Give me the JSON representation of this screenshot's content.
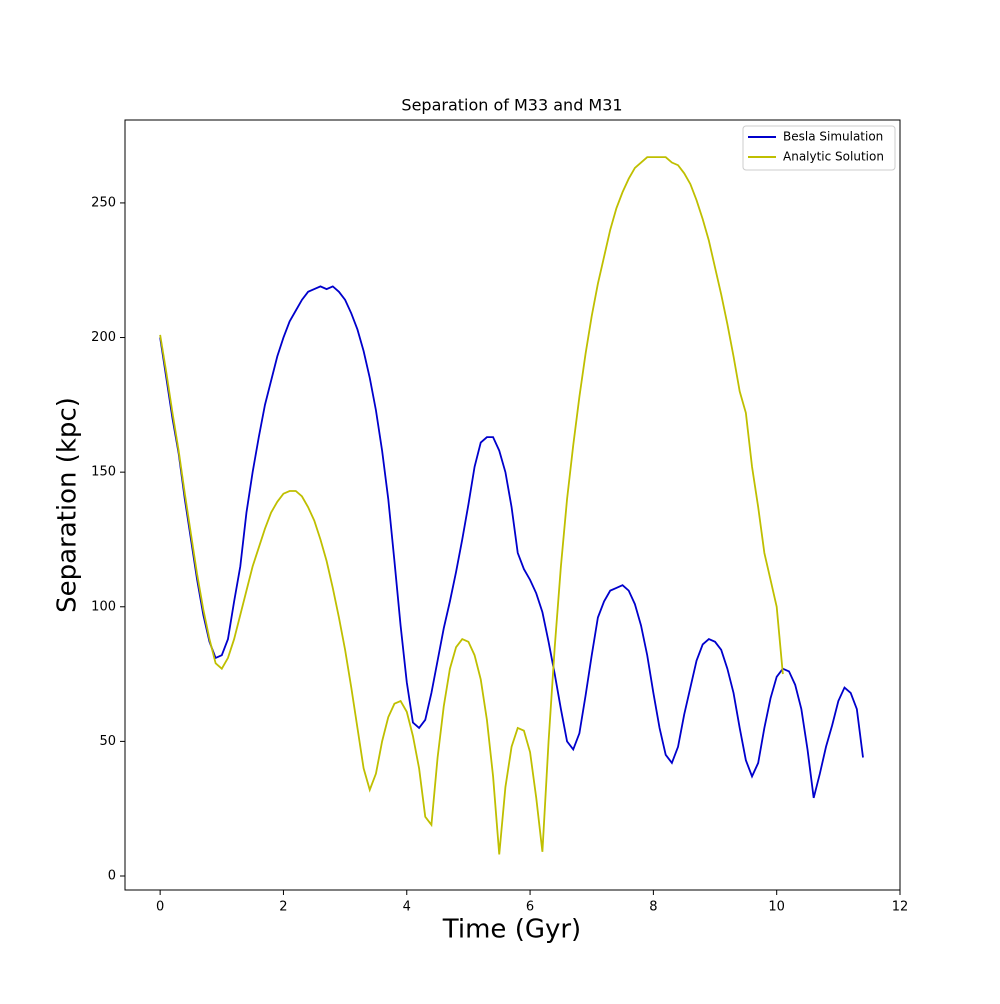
{
  "chart_data": {
    "type": "line",
    "title": "Separation of M33 and M31",
    "xlabel": "Time (Gyr)",
    "ylabel": "Separation (kpc)",
    "x": [
      0,
      0.1,
      0.2,
      0.3,
      0.4,
      0.5,
      0.6,
      0.7,
      0.8,
      0.9,
      1.0,
      1.1,
      1.2,
      1.3,
      1.4,
      1.5,
      1.6,
      1.7,
      1.8,
      1.9,
      2.0,
      2.1,
      2.2,
      2.3,
      2.4,
      2.5,
      2.6,
      2.7,
      2.8,
      2.9,
      3.0,
      3.1,
      3.2,
      3.3,
      3.4,
      3.5,
      3.6,
      3.7,
      3.8,
      3.9,
      4.0,
      4.1,
      4.2,
      4.3,
      4.4,
      4.5,
      4.6,
      4.7,
      4.8,
      4.9,
      5.0,
      5.1,
      5.2,
      5.3,
      5.4,
      5.5,
      5.6,
      5.7,
      5.8,
      5.9,
      6.0,
      6.1,
      6.2,
      6.3,
      6.4,
      6.5,
      6.6,
      6.7,
      6.8,
      6.9,
      7.0,
      7.1,
      7.2,
      7.3,
      7.4,
      7.5,
      7.6,
      7.7,
      7.8,
      7.9,
      8.0,
      8.1,
      8.2,
      8.3,
      8.4,
      8.5,
      8.6,
      8.7,
      8.8,
      8.9,
      9.0,
      9.1,
      9.2,
      9.3,
      9.4,
      9.5,
      9.6,
      9.7,
      9.8,
      9.9,
      10.0,
      10.1,
      10.2,
      10.3,
      10.4,
      10.5,
      10.6,
      10.7,
      10.8,
      10.9,
      11.0,
      11.1,
      11.2,
      11.3,
      11.4
    ],
    "series": [
      {
        "name": "Besla Simulation",
        "color": "#0000cc",
        "values": [
          200,
          185,
          170,
          157,
          140,
          125,
          110,
          97,
          87,
          81,
          82,
          88,
          102,
          115,
          135,
          150,
          163,
          175,
          184,
          193,
          200,
          206,
          210,
          214,
          217,
          218,
          219,
          218,
          219,
          217,
          214,
          209,
          203,
          195,
          185,
          173,
          158,
          140,
          117,
          93,
          72,
          57,
          55,
          58,
          68,
          80,
          92,
          102,
          113,
          125,
          138,
          152,
          161,
          163,
          163,
          158,
          150,
          137,
          120,
          114,
          110,
          105,
          98,
          87,
          75,
          62,
          50,
          47,
          53,
          67,
          82,
          96,
          102,
          106,
          107,
          108,
          106,
          101,
          93,
          82,
          68,
          55,
          45,
          42,
          48,
          60,
          70,
          80,
          86,
          88,
          87,
          84,
          77,
          68,
          55,
          43,
          37,
          42,
          55,
          66,
          74,
          77,
          76,
          71,
          62,
          47,
          29,
          38,
          48,
          56,
          65,
          70,
          68,
          62,
          44
        ]
      },
      {
        "name": "Analytic Solution",
        "color": "#bfbf00",
        "values": [
          201,
          187,
          172,
          158,
          142,
          127,
          112,
          99,
          88,
          79,
          77,
          81,
          88,
          97,
          106,
          115,
          122,
          129,
          135,
          139,
          142,
          143,
          143,
          141,
          137,
          132,
          125,
          117,
          107,
          96,
          84,
          70,
          55,
          40,
          32,
          38,
          50,
          59,
          64,
          65,
          61,
          52,
          40,
          22,
          19,
          44,
          63,
          77,
          85,
          88,
          87,
          82,
          73,
          58,
          37,
          8,
          33,
          48,
          55,
          54,
          46,
          29,
          9,
          50,
          85,
          115,
          140,
          160,
          178,
          194,
          208,
          220,
          230,
          240,
          248,
          254,
          259,
          263,
          265,
          267,
          267,
          267,
          267,
          265,
          264,
          261,
          257,
          251,
          244,
          236,
          226,
          216,
          205,
          193,
          180,
          172,
          152,
          137,
          120,
          110,
          100,
          75,
          null,
          null,
          null,
          null,
          null,
          null,
          null,
          null,
          null,
          null,
          null,
          null,
          null
        ]
      }
    ],
    "xlim": [
      -0.57,
      12
    ],
    "ylim": [
      -5.2,
      280.8
    ],
    "xticks": [
      0,
      2,
      4,
      6,
      8,
      10,
      12
    ],
    "yticks": [
      0,
      50,
      100,
      150,
      200,
      250
    ],
    "legend": "upper right",
    "grid": false
  }
}
